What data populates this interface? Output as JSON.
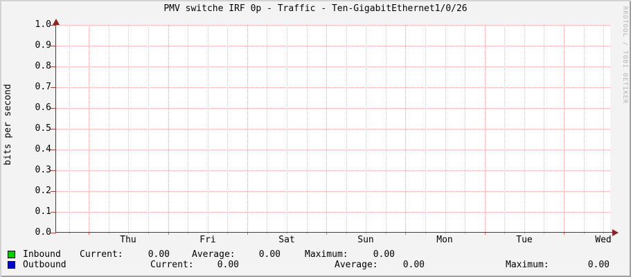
{
  "title": "PMV switche IRF 0p - Traffic - Ten-GigabitEthernet1/0/26",
  "watermark": "RRDTOOL / TOBI OETIKER",
  "y_axis": {
    "label": "bits per second",
    "ticks": [
      "1.0",
      "0.9",
      "0.8",
      "0.7",
      "0.6",
      "0.5",
      "0.4",
      "0.3",
      "0.2",
      "0.1",
      "0.0"
    ]
  },
  "x_axis": {
    "ticks": [
      "Thu",
      "Fri",
      "Sat",
      "Sun",
      "Mon",
      "Tue",
      "Wed"
    ]
  },
  "legend": {
    "rows": [
      {
        "name": "Inbound",
        "swatch_color": "#00CC00",
        "current_label": "Current:",
        "current_value": "0.00",
        "average_label": "Average:",
        "average_value": "0.00",
        "maximum_label": "Maximum:",
        "maximum_value": "0.00"
      },
      {
        "name": "Outbound",
        "swatch_color": "#0000CC",
        "current_label": "Current:",
        "current_value": "0.00",
        "average_label": "Average:",
        "average_value": "0.00",
        "maximum_label": "Maximum:",
        "maximum_value": "0.00"
      }
    ]
  },
  "colors": {
    "background": "#f3f3f3",
    "canvas": "#ffffff",
    "major_grid": "#f0a0a0",
    "minor_grid": "#cbcbcb",
    "axis": "#3d3d3d",
    "arrow": "#8b2323",
    "y_tick": "#9b4040",
    "x_major_tick": "#d96b6b",
    "x_minor_tick": "#bdbdbd",
    "inbound": "#00CC00",
    "outbound": "#0000CC"
  },
  "chart_data": {
    "type": "line",
    "title": "PMV switche IRF 0p - Traffic - Ten-GigabitEthernet1/0/26",
    "xlabel": "",
    "ylabel": "bits per second",
    "x": [
      "Thu",
      "Fri",
      "Sat",
      "Sun",
      "Mon",
      "Tue",
      "Wed"
    ],
    "ylim": [
      0.0,
      1.0
    ],
    "y_tick_step": 0.1,
    "grid": true,
    "legend_position": "bottom",
    "series": [
      {
        "name": "Inbound",
        "color": "#00CC00",
        "values": [
          0,
          0,
          0,
          0,
          0,
          0,
          0
        ],
        "stats": {
          "current": 0.0,
          "average": 0.0,
          "maximum": 0.0
        }
      },
      {
        "name": "Outbound",
        "color": "#0000CC",
        "values": [
          0,
          0,
          0,
          0,
          0,
          0,
          0
        ],
        "stats": {
          "current": 0.0,
          "average": 0.0,
          "maximum": 0.0
        }
      }
    ]
  }
}
